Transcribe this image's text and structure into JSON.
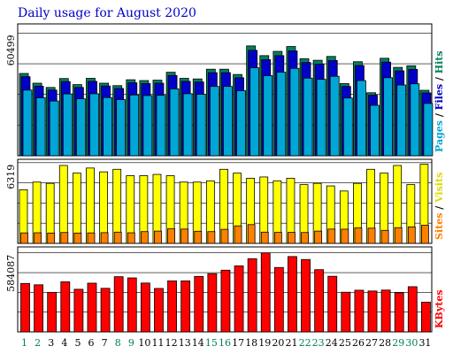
{
  "chart_data": {
    "type": "bar",
    "title": "Daily usage for August 2020",
    "categories": [
      "1",
      "2",
      "3",
      "4",
      "5",
      "6",
      "7",
      "8",
      "9",
      "10",
      "11",
      "12",
      "13",
      "14",
      "15",
      "16",
      "17",
      "18",
      "19",
      "20",
      "21",
      "22",
      "23",
      "24",
      "25",
      "26",
      "27",
      "28",
      "29",
      "30",
      "31"
    ],
    "weekend_days": [
      "1",
      "2",
      "8",
      "9",
      "15",
      "16",
      "22",
      "23",
      "29",
      "30"
    ],
    "panels": [
      {
        "id": "hits",
        "ymax_label": "60499",
        "ymax": 60499,
        "legend": [
          {
            "text": "Hits",
            "color": "#00805c"
          },
          {
            "text": " / ",
            "color": "#000000"
          },
          {
            "text": "Files",
            "color": "#0000c8"
          },
          {
            "text": " / ",
            "color": "#000000"
          },
          {
            "text": "Pages",
            "color": "#00a6d6"
          }
        ],
        "series": [
          {
            "name": "Hits",
            "color": "#00805c",
            "values": [
              40600,
              35800,
              33700,
              38100,
              35100,
              38200,
              35800,
              34600,
              37500,
              37100,
              37300,
              41200,
              38200,
              37900,
              42700,
              42700,
              40100,
              54200,
              49400,
              51500,
              53900,
              47900,
              47100,
              49000,
              35600,
              46400,
              31100,
              48100,
              43600,
              44400,
              32300
            ]
          },
          {
            "name": "Files",
            "color": "#0000c8",
            "values": [
              39000,
              34300,
              32400,
              36600,
              33700,
              36700,
              34400,
              33200,
              36000,
              35600,
              35800,
              39600,
              36700,
              36400,
              41000,
              41000,
              38500,
              52000,
              47400,
              49400,
              51700,
              46000,
              45200,
              47000,
              34200,
              44500,
              29900,
              46200,
              41900,
              42600,
              31000
            ]
          },
          {
            "name": "Pages",
            "color": "#00a6d6",
            "values": [
              32400,
              28600,
              27000,
              30500,
              28100,
              30600,
              28700,
              27700,
              30000,
              29700,
              29800,
              33000,
              30600,
              30300,
              34200,
              34200,
              32100,
              43400,
              39500,
              41200,
              43100,
              38300,
              37700,
              39200,
              28500,
              37100,
              24900,
              38500,
              34900,
              35500,
              25800
            ]
          }
        ]
      },
      {
        "id": "visits",
        "ymax_label": "6319",
        "ymax": 6319,
        "legend": [
          {
            "text": "Visits",
            "color": "#dcdc00"
          },
          {
            "text": " / ",
            "color": "#000000"
          },
          {
            "text": "Sites",
            "color": "#ff8000"
          }
        ],
        "series": [
          {
            "name": "Visits",
            "color": "#ffff00",
            "values": [
              4200,
              4800,
              4700,
              6100,
              5500,
              5900,
              5600,
              5800,
              5300,
              5300,
              5400,
              5300,
              4800,
              4800,
              4900,
              5800,
              5500,
              5100,
              5200,
              4900,
              5100,
              4600,
              4700,
              4500,
              4100,
              4700,
              5800,
              5500,
              6100,
              4600,
              6200
            ]
          },
          {
            "name": "Sites",
            "color": "#ff8000",
            "values": [
              820,
              830,
              810,
              850,
              810,
              820,
              840,
              880,
              830,
              920,
              960,
              1140,
              1120,
              950,
              920,
              1100,
              1370,
              1470,
              880,
              860,
              860,
              850,
              960,
              1120,
              1110,
              1210,
              1190,
              1020,
              1230,
              1290,
              1420
            ]
          }
        ]
      },
      {
        "id": "kbytes",
        "ymax_label": "584087",
        "ymax": 584087,
        "legend": [
          {
            "text": "KBytes",
            "color": "#ff0000"
          }
        ],
        "series": [
          {
            "name": "KBytes",
            "color": "#ff0000",
            "values": [
              358000,
              348000,
              292000,
              370000,
              315000,
              360000,
              322000,
              408000,
              399000,
              361000,
              321000,
              377000,
              377000,
              410000,
              430000,
              456000,
              488000,
              541000,
              584000,
              476000,
              557000,
              535000,
              460000,
              411000,
              293000,
              308000,
              302000,
              309000,
              289000,
              334000,
              220000
            ]
          }
        ]
      }
    ]
  }
}
